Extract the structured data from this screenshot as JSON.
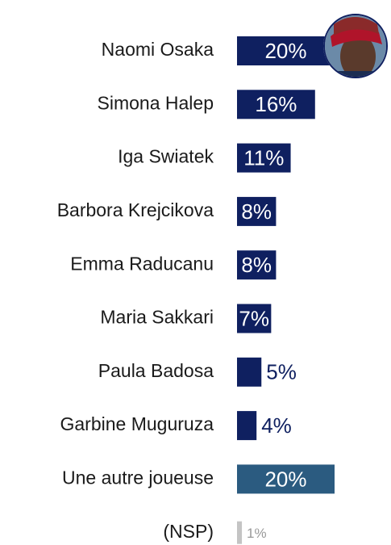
{
  "chart_data": {
    "type": "bar",
    "orientation": "horizontal",
    "categories": [
      "Naomi Osaka",
      "Simona Halep",
      "Iga Swiatek",
      "Barbora Krejcikova",
      "Emma Raducanu",
      "Maria Sakkari",
      "Paula Badosa",
      "Garbine Muguruza",
      "Une autre joueuse",
      "(NSP)"
    ],
    "values": [
      20,
      16,
      11,
      8,
      8,
      7,
      5,
      4,
      20,
      1
    ],
    "value_labels": [
      "20%",
      "16%",
      "11%",
      "8%",
      "8%",
      "7%",
      "5%",
      "4%",
      "20%",
      "1%"
    ],
    "colors": [
      "#0f2060",
      "#0f2060",
      "#0f2060",
      "#0f2060",
      "#0f2060",
      "#0f2060",
      "#0f2060",
      "#0f2060",
      "#2b5b80",
      "#c4c4c4"
    ]
  }
}
